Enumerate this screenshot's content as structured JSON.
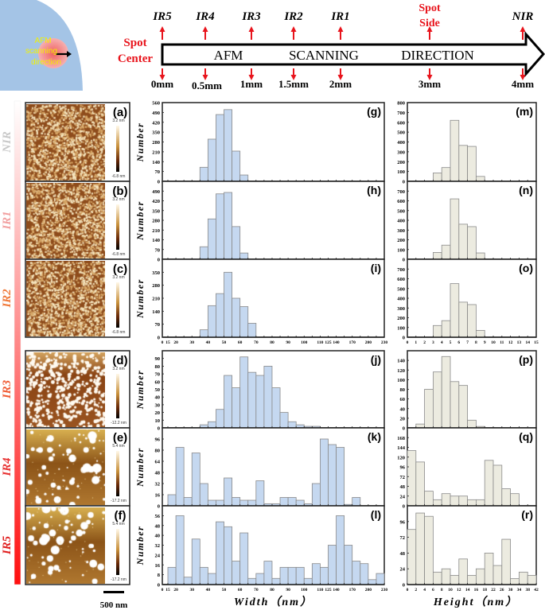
{
  "diagram": {
    "inset_label": [
      "AFM",
      "scanning",
      "direction"
    ],
    "arrow_words": [
      "AFM",
      "SCANNING",
      "DIRECTION"
    ],
    "spot_center": [
      "Spot",
      "Center"
    ],
    "spot_side": [
      "Spot",
      "Side"
    ],
    "markers": [
      {
        "region": "IR5",
        "pos": "0mm"
      },
      {
        "region": "IR4",
        "pos": "0.5mm"
      },
      {
        "region": "IR3",
        "pos": "1mm"
      },
      {
        "region": "IR2",
        "pos": "1.5mm"
      },
      {
        "region": "IR1",
        "pos": "2mm"
      },
      {
        "region": "",
        "pos": "3mm"
      },
      {
        "region": "NIR",
        "pos": "4mm"
      }
    ],
    "colors": {
      "inset_bg": "#a4c4e6",
      "spot": "#f08080",
      "inset_text": "#f2f200",
      "marker": "#e8141c"
    }
  },
  "afm_panels": [
    {
      "label": "(a)",
      "region": "NIR",
      "region_color": "#c8c8c8",
      "scale_max": "3.2 nm",
      "scale_min": "-6.8 nm"
    },
    {
      "label": "(b)",
      "region": "IR1",
      "region_color": "#f2a0a0",
      "scale_max": "3.2 nm",
      "scale_min": "-6.8 nm"
    },
    {
      "label": "(c)",
      "region": "IR2",
      "region_color": "#f07838",
      "scale_max": "3.2 nm",
      "scale_min": "-6.8 nm"
    },
    {
      "label": "(d)",
      "region": "IR3",
      "region_color": "#f05a32",
      "scale_max": "3.2 nm",
      "scale_min": "-12.2 nm"
    },
    {
      "label": "(e)",
      "region": "IR4",
      "region_color": "#e83030",
      "scale_max": "5.4 nm",
      "scale_min": "-17.2 nm"
    },
    {
      "label": "(f)",
      "region": "IR5",
      "region_color": "#e01c1c",
      "scale_max": "5.4 nm",
      "scale_min": "-17.2 nm"
    }
  ],
  "scale_bar": "500 nm",
  "chart_data": [
    {
      "type": "bar",
      "label": "(g)",
      "ylabel": "Number",
      "color": "#c5d8f0",
      "ylim": [
        0,
        560
      ],
      "yticks": [
        0,
        70,
        140,
        210,
        280,
        350,
        420,
        490,
        560
      ],
      "categories": [
        "15-20",
        "20-25",
        "25-30",
        "30-35",
        "35-40",
        "40-45",
        "45-50",
        "50-55",
        "55-60",
        "60-65",
        "65-70",
        "70-75",
        "75-80",
        "80-85",
        "85-90",
        "90-95",
        "95-100",
        "100-105",
        "105-110",
        "110-125",
        "125-140",
        "140-155",
        "155-170",
        "170-185",
        "185-200",
        "200-215",
        "215-230"
      ],
      "values": [
        0,
        0,
        0,
        0,
        100,
        300,
        475,
        510,
        215,
        45,
        0,
        0,
        0,
        0,
        0,
        0,
        0,
        0,
        0,
        0,
        0,
        0,
        0,
        0,
        0,
        0,
        0
      ]
    },
    {
      "type": "bar",
      "label": "(h)",
      "ylabel": "Number",
      "color": "#c5d8f0",
      "ylim": [
        0,
        560
      ],
      "yticks": [
        0,
        70,
        140,
        210,
        280,
        350,
        420,
        490
      ],
      "categories": [
        "15-20",
        "20-25",
        "25-30",
        "30-35",
        "35-40",
        "40-45",
        "45-50",
        "50-55",
        "55-60",
        "60-65",
        "65-70",
        "70-75",
        "75-80",
        "80-85",
        "85-90",
        "90-95",
        "95-100",
        "100-105",
        "105-110",
        "110-125",
        "125-140",
        "140-155",
        "155-170",
        "170-185",
        "185-200",
        "200-215",
        "215-230"
      ],
      "values": [
        0,
        0,
        0,
        0,
        90,
        290,
        470,
        480,
        235,
        45,
        0,
        0,
        0,
        0,
        0,
        0,
        0,
        0,
        0,
        0,
        0,
        0,
        0,
        0,
        0,
        0,
        0
      ]
    },
    {
      "type": "bar",
      "label": "(i)",
      "ylabel": "Number",
      "color": "#c5d8f0",
      "ylim": [
        0,
        420
      ],
      "yticks": [
        0,
        70,
        140,
        210,
        280,
        350
      ],
      "categories": [
        "15-20",
        "20-25",
        "25-30",
        "30-35",
        "35-40",
        "40-45",
        "45-50",
        "50-55",
        "55-60",
        "60-65",
        "65-70",
        "70-75",
        "75-80",
        "80-85",
        "85-90",
        "90-95",
        "95-100",
        "100-105",
        "105-110",
        "110-125",
        "125-140",
        "140-155",
        "155-170",
        "170-185",
        "185-200",
        "200-215",
        "215-230"
      ],
      "values": [
        0,
        0,
        0,
        0,
        40,
        170,
        235,
        350,
        210,
        165,
        75,
        0,
        0,
        0,
        0,
        0,
        0,
        0,
        0,
        0,
        0,
        0,
        0,
        0,
        0,
        0,
        0
      ],
      "xticks": [
        "0",
        "15",
        "20",
        "30",
        "40",
        "50",
        "60",
        "70",
        "80",
        "90",
        "100",
        "110",
        "125",
        "140",
        "170",
        "200",
        "230"
      ]
    },
    {
      "type": "bar",
      "label": "(j)",
      "ylabel": "Number",
      "color": "#c5d8f0",
      "ylim": [
        0,
        100
      ],
      "yticks": [
        0,
        10,
        20,
        30,
        40,
        50,
        60,
        70,
        80,
        90
      ],
      "categories": [
        "15-20",
        "20-25",
        "25-30",
        "30-35",
        "35-40",
        "40-45",
        "45-50",
        "50-55",
        "55-60",
        "60-65",
        "65-70",
        "70-75",
        "75-80",
        "80-85",
        "85-90",
        "90-95",
        "95-100",
        "100-105",
        "105-110",
        "110-125",
        "125-140",
        "140-155",
        "155-170",
        "170-185",
        "185-200",
        "200-215",
        "215-230"
      ],
      "values": [
        0,
        0,
        0,
        0,
        4,
        8,
        24,
        68,
        52,
        92,
        72,
        68,
        80,
        52,
        20,
        8,
        4,
        2,
        2,
        0,
        0,
        0,
        0,
        0,
        0,
        0,
        0
      ]
    },
    {
      "type": "bar",
      "label": "(k)",
      "ylabel": "Number",
      "color": "#c5d8f0",
      "ylim": [
        0,
        112
      ],
      "yticks": [
        0,
        16,
        32,
        48,
        64,
        80,
        96
      ],
      "categories": [
        "15-20",
        "20-25",
        "25-30",
        "30-35",
        "35-40",
        "40-45",
        "45-50",
        "50-55",
        "55-60",
        "60-65",
        "65-70",
        "70-75",
        "75-80",
        "80-85",
        "85-90",
        "90-95",
        "95-100",
        "100-105",
        "105-110",
        "110-125",
        "125-140",
        "140-155",
        "155-170",
        "170-185",
        "185-200",
        "200-215",
        "215-230"
      ],
      "values": [
        16,
        84,
        12,
        76,
        32,
        8,
        8,
        40,
        12,
        8,
        8,
        36,
        3,
        3,
        12,
        12,
        8,
        3,
        32,
        96,
        88,
        84,
        2,
        12,
        0,
        0,
        0
      ]
    },
    {
      "type": "bar",
      "label": "(l)",
      "ylabel": "Number",
      "xlabel": "Width（nm）",
      "color": "#c5d8f0",
      "ylim": [
        0,
        64
      ],
      "yticks": [
        0,
        8,
        16,
        24,
        32,
        40,
        48,
        56
      ],
      "categories": [
        "15-20",
        "20-25",
        "25-30",
        "30-35",
        "35-40",
        "40-45",
        "45-50",
        "50-55",
        "55-60",
        "60-65",
        "65-70",
        "70-75",
        "75-80",
        "80-85",
        "85-90",
        "90-95",
        "95-100",
        "100-105",
        "105-110",
        "110-125",
        "125-140",
        "140-155",
        "155-170",
        "170-185",
        "185-200",
        "200-215",
        "215-230"
      ],
      "values": [
        14,
        56,
        6,
        37,
        14,
        9,
        51,
        47,
        19,
        42,
        5,
        9,
        19,
        5,
        14,
        14,
        14,
        5,
        17,
        14,
        32,
        56,
        32,
        19,
        17,
        4,
        9
      ],
      "xticks": [
        "0",
        "15",
        "20",
        "30",
        "40",
        "50",
        "60",
        "70",
        "80",
        "90",
        "100",
        "110",
        "125",
        "140",
        "170",
        "200",
        "230"
      ]
    },
    {
      "type": "bar",
      "label": "(m)",
      "color": "#ecebe0",
      "ylim": [
        0,
        800
      ],
      "yticks": [
        0,
        100,
        200,
        300,
        400,
        500,
        600,
        700,
        800
      ],
      "categories": [
        "0-1",
        "1-2",
        "2-3",
        "3-4",
        "4-5",
        "5-6",
        "6-7",
        "7-8",
        "8-9",
        "9-10",
        "10-11",
        "11-12",
        "12-13",
        "13-14",
        "14-15"
      ],
      "values": [
        0,
        0,
        0,
        85,
        140,
        620,
        365,
        355,
        50,
        0,
        0,
        0,
        0,
        0,
        0
      ]
    },
    {
      "type": "bar",
      "label": "(n)",
      "color": "#ecebe0",
      "ylim": [
        0,
        800
      ],
      "yticks": [
        0,
        100,
        200,
        300,
        400,
        500,
        600,
        700
      ],
      "categories": [
        "0-1",
        "1-2",
        "2-3",
        "3-4",
        "4-5",
        "5-6",
        "6-7",
        "7-8",
        "8-9",
        "9-10",
        "10-11",
        "11-12",
        "12-13",
        "13-14",
        "14-15"
      ],
      "values": [
        0,
        0,
        0,
        70,
        145,
        620,
        360,
        335,
        65,
        0,
        0,
        0,
        0,
        0,
        0
      ]
    },
    {
      "type": "bar",
      "label": "(o)",
      "color": "#ecebe0",
      "ylim": [
        0,
        800
      ],
      "yticks": [
        0,
        100,
        200,
        300,
        400,
        500,
        600,
        700
      ],
      "categories": [
        "0-1",
        "1-2",
        "2-3",
        "3-4",
        "4-5",
        "5-6",
        "6-7",
        "7-8",
        "8-9",
        "9-10",
        "10-11",
        "11-12",
        "12-13",
        "13-14",
        "14-15"
      ],
      "values": [
        0,
        0,
        0,
        120,
        170,
        550,
        360,
        335,
        70,
        0,
        0,
        0,
        0,
        0,
        0
      ],
      "xticks": [
        "0",
        "1",
        "2",
        "3",
        "4",
        "5",
        "6",
        "7",
        "8",
        "9",
        "10",
        "11",
        "12",
        "13",
        "14",
        "15"
      ]
    },
    {
      "type": "bar",
      "label": "(p)",
      "color": "#ecebe0",
      "ylim": [
        0,
        160
      ],
      "yticks": [
        0,
        20,
        40,
        60,
        80,
        100,
        120,
        140
      ],
      "categories": [
        "0-2",
        "2-4",
        "4-6",
        "6-8",
        "8-10",
        "10-12",
        "12-14",
        "14-16",
        "16-18",
        "18-22",
        "22-26",
        "26-30",
        "30-34",
        "34-38",
        "38-42"
      ],
      "values": [
        0,
        8,
        80,
        116,
        148,
        96,
        88,
        16,
        3,
        0,
        0,
        0,
        0,
        0,
        0
      ]
    },
    {
      "type": "bar",
      "label": "(q)",
      "color": "#ecebe0",
      "ylim": [
        0,
        192
      ],
      "yticks": [
        0,
        24,
        48,
        72,
        96,
        120,
        144,
        168
      ],
      "categories": [
        "0-2",
        "2-4",
        "4-6",
        "6-8",
        "8-10",
        "10-12",
        "12-14",
        "14-16",
        "16-18",
        "18-22",
        "22-26",
        "26-30",
        "30-34",
        "34-38",
        "38-42"
      ],
      "values": [
        136,
        108,
        36,
        15,
        30,
        24,
        24,
        15,
        15,
        112,
        100,
        42,
        30,
        0,
        0
      ]
    },
    {
      "type": "bar",
      "label": "(r)",
      "xlabel": "Height（nm）",
      "color": "#ecebe0",
      "ylim": [
        0,
        120
      ],
      "yticks": [
        0,
        24,
        48,
        72,
        96
      ],
      "categories": [
        "0-2",
        "2-4",
        "4-6",
        "6-8",
        "8-10",
        "10-12",
        "12-14",
        "14-16",
        "16-18",
        "18-22",
        "22-26",
        "26-30",
        "30-34",
        "34-38",
        "38-42"
      ],
      "values": [
        84,
        109,
        104,
        19,
        24,
        14,
        39,
        14,
        24,
        48,
        29,
        69,
        9,
        19,
        14
      ],
      "xticks": [
        "0",
        "2",
        "4",
        "6",
        "8",
        "10",
        "12",
        "14",
        "16",
        "18",
        "22",
        "26",
        "30",
        "34",
        "38",
        "42"
      ]
    }
  ]
}
